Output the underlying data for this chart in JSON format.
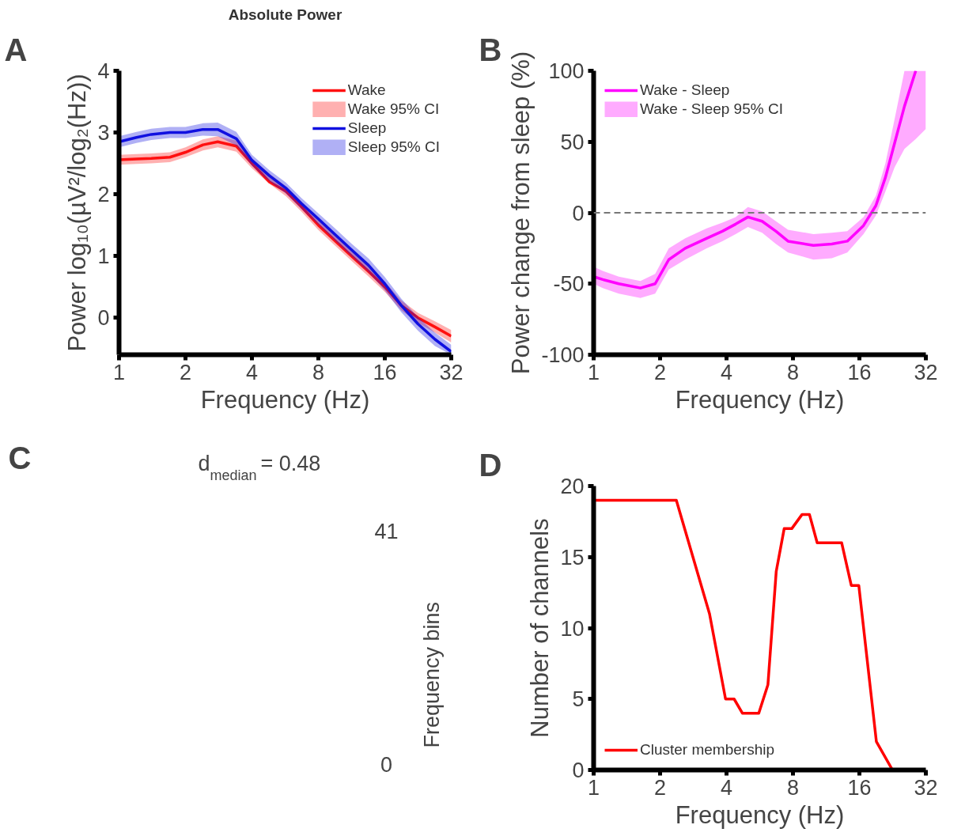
{
  "chart_data": [
    {
      "type": "line",
      "title": "Absolute Power",
      "annotations": [
        "A",
        "Wake 95% CI",
        "Sleep 95% CI"
      ],
      "xlabel": "Frequency (Hz)",
      "ylabel": "Power log₁₀(µV²/log₂(Hz))",
      "log": "x",
      "legend": "top right",
      "x": [
        1,
        1.2,
        1.4,
        1.7,
        2,
        2.4,
        2.8,
        3.4,
        4,
        4.8,
        5.7,
        6.7,
        8,
        9.5,
        11.3,
        13.5,
        16,
        19,
        22.6,
        27,
        32
      ],
      "xlim": [
        1,
        32
      ],
      "xticks": [
        1,
        2,
        4,
        8,
        16,
        32
      ],
      "ylim": [
        -0.6,
        4
      ],
      "yticks": [
        0,
        1,
        2,
        3,
        4
      ],
      "series": [
        {
          "name": "Wake",
          "color": "#ff1010",
          "values": [
            2.56,
            2.57,
            2.58,
            2.6,
            2.68,
            2.8,
            2.85,
            2.78,
            2.5,
            2.2,
            2.05,
            1.8,
            1.5,
            1.25,
            1.0,
            0.75,
            0.5,
            0.2,
            0.0,
            -0.15,
            -0.3
          ],
          "lower": [
            2.48,
            2.49,
            2.5,
            2.52,
            2.6,
            2.71,
            2.76,
            2.69,
            2.42,
            2.17,
            1.97,
            1.72,
            1.42,
            1.17,
            0.92,
            0.67,
            0.42,
            0.12,
            -0.08,
            -0.24,
            -0.4
          ],
          "upper": [
            2.64,
            2.65,
            2.66,
            2.68,
            2.76,
            2.89,
            2.94,
            2.87,
            2.58,
            2.33,
            2.13,
            1.88,
            1.58,
            1.33,
            1.08,
            0.83,
            0.58,
            0.28,
            0.08,
            -0.06,
            -0.2
          ]
        },
        {
          "name": "Sleep",
          "color": "#1010e0",
          "values": [
            2.85,
            2.92,
            2.97,
            3.0,
            3.0,
            3.05,
            3.05,
            2.9,
            2.55,
            2.3,
            2.1,
            1.85,
            1.6,
            1.35,
            1.1,
            0.85,
            0.55,
            0.2,
            -0.1,
            -0.35,
            -0.55
          ],
          "lower": [
            2.76,
            2.83,
            2.88,
            2.91,
            2.91,
            2.95,
            2.94,
            2.79,
            2.46,
            2.21,
            2.01,
            1.76,
            1.51,
            1.25,
            1.0,
            0.74,
            0.44,
            0.09,
            -0.21,
            -0.46,
            -0.6
          ],
          "upper": [
            2.94,
            3.01,
            3.06,
            3.09,
            3.09,
            3.15,
            3.16,
            3.01,
            2.64,
            2.39,
            2.19,
            1.94,
            1.69,
            1.45,
            1.2,
            0.96,
            0.66,
            0.31,
            0.01,
            -0.24,
            -0.44
          ]
        }
      ]
    },
    {
      "type": "line",
      "annotations": [
        "B",
        "Wake - Sleep 95% CI"
      ],
      "xlabel": "Frequency (Hz)",
      "ylabel": "Power change from sleep (%)",
      "log": "x",
      "legend": "top left",
      "x": [
        1,
        1.1,
        1.3,
        1.63,
        1.9,
        2.19,
        2.6,
        3.25,
        3.83,
        4.4,
        5.0,
        5.8,
        6.7,
        7.6,
        9.9,
        12,
        14.1,
        16.7,
        19,
        21,
        23.1,
        25.6,
        28.8,
        32
      ],
      "xlim": [
        1,
        32
      ],
      "xticks": [
        1,
        2,
        4,
        8,
        16,
        32
      ],
      "ylim": [
        -100,
        100
      ],
      "yticks": [
        -100,
        -50,
        0,
        50,
        100
      ],
      "ref_lines": [
        {
          "axis": "y",
          "value": 0,
          "color": "#777777",
          "line_style": "dashed"
        }
      ],
      "series": [
        {
          "name": "Wake - Sleep",
          "color": "#ff00ff",
          "values": [
            -45,
            -47,
            -50,
            -53,
            -50,
            -33,
            -25,
            -18,
            -13,
            -8,
            -3,
            -6,
            -13,
            -20,
            -23,
            -22,
            -20,
            -9,
            5,
            25,
            49,
            75,
            100,
            null
          ],
          "lower": [
            -50,
            -53,
            -57,
            -60,
            -57,
            -40,
            -33,
            -25,
            -20,
            -15,
            -10,
            -14,
            -22,
            -28,
            -33,
            -32,
            -28,
            -15,
            -2,
            15,
            32,
            45,
            52,
            59
          ],
          "upper": [
            -38,
            -41,
            -45,
            -48,
            -43,
            -25,
            -18,
            -11,
            -7,
            -3,
            4,
            1,
            -6,
            -12,
            -15,
            -14,
            -13,
            -3,
            12,
            35,
            66,
            100,
            100,
            100
          ]
        }
      ]
    },
    {
      "type": "other",
      "annotations": [
        "C",
        "d$_{median}$ = 0.48",
        "41",
        "0"
      ],
      "clabel": "Frequency bins"
    },
    {
      "type": "line",
      "annotations": [
        "D"
      ],
      "xlabel": "Frequency (Hz)",
      "ylabel": "Number of channels",
      "log": "x",
      "legend": "bottom left",
      "x": [
        1,
        2.37,
        3.35,
        3.96,
        4.33,
        4.72,
        5.6,
        6.16,
        6.72,
        7.3,
        7.9,
        8.8,
        9.5,
        10.3,
        13.3,
        14.7,
        15.9,
        19.1,
        22.6
      ],
      "xlim": [
        1,
        32
      ],
      "xticks": [
        1,
        2,
        4,
        8,
        16,
        32
      ],
      "ylim": [
        0,
        20
      ],
      "yticks": [
        0,
        5,
        10,
        15,
        20
      ],
      "series": [
        {
          "name": "Cluster membership",
          "color": "#ff0000",
          "values": [
            19,
            19,
            11,
            5,
            5,
            4,
            4,
            6,
            14,
            17,
            17,
            18,
            18,
            16,
            16,
            13,
            13,
            2,
            0
          ]
        }
      ]
    }
  ]
}
